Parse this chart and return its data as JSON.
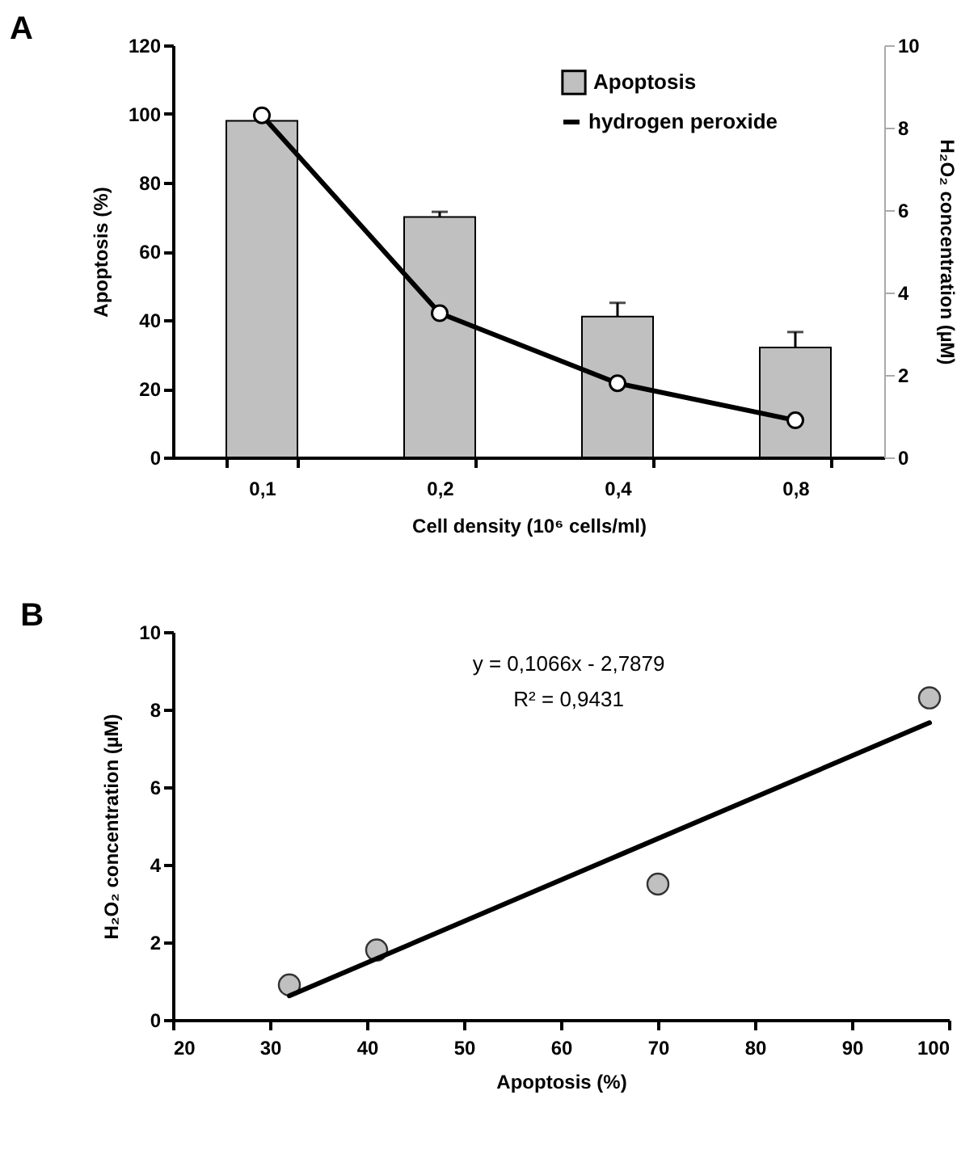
{
  "chart_data": [
    {
      "type": "bar",
      "title": "A",
      "xlabel": "Cell density (10⁶ cells/ml)",
      "ylabel": "Apoptosis (%)",
      "y2label": "H₂O₂ concentration (µM)",
      "categories": [
        "0,1",
        "0,2",
        "0,4",
        "0,8"
      ],
      "series": [
        {
          "name": "Apoptosis",
          "color": "#c0c0c0",
          "values": [
            98,
            70,
            41,
            32
          ],
          "errors": [
            null,
            [
              70,
              71.5
            ],
            [
              41,
              45
            ],
            [
              32,
              36.5
            ]
          ]
        },
        {
          "name": "hydrogen peroxide",
          "type": "line",
          "axis": "y2",
          "color": "#000000",
          "marker": "circle",
          "values": [
            8.3,
            3.5,
            1.8,
            0.9
          ]
        }
      ],
      "ylim": [
        0,
        120
      ],
      "yticks": [
        0,
        20,
        40,
        60,
        80,
        100,
        120
      ],
      "y2lim": [
        0,
        10
      ],
      "y2ticks": [
        0,
        2,
        4,
        6,
        8,
        10
      ],
      "grid": false,
      "legend": "top right"
    },
    {
      "type": "scatter",
      "title": "B",
      "xlabel": "Apoptosis (%)",
      "ylabel": "H₂O₂ concentration (µM)",
      "annotations": [
        "y = 0,1066x - 2,7879",
        "R² = 0,9431"
      ],
      "series": [
        {
          "color": "#c0c0c0",
          "marker": "circle",
          "x": [
            32,
            41,
            70,
            98
          ],
          "values": [
            0.9,
            1.8,
            3.5,
            8.3
          ]
        },
        {
          "type": "line",
          "color": "#000000",
          "x": [
            32,
            98
          ],
          "values": [
            0.62,
            7.66
          ]
        }
      ],
      "xlim": [
        20,
        100
      ],
      "xticks": [
        20,
        30,
        40,
        50,
        60,
        70,
        80,
        90,
        100
      ],
      "ylim": [
        0,
        10
      ],
      "yticks": [
        0,
        2,
        4,
        6,
        8,
        10
      ],
      "grid": false,
      "legend": false
    }
  ]
}
